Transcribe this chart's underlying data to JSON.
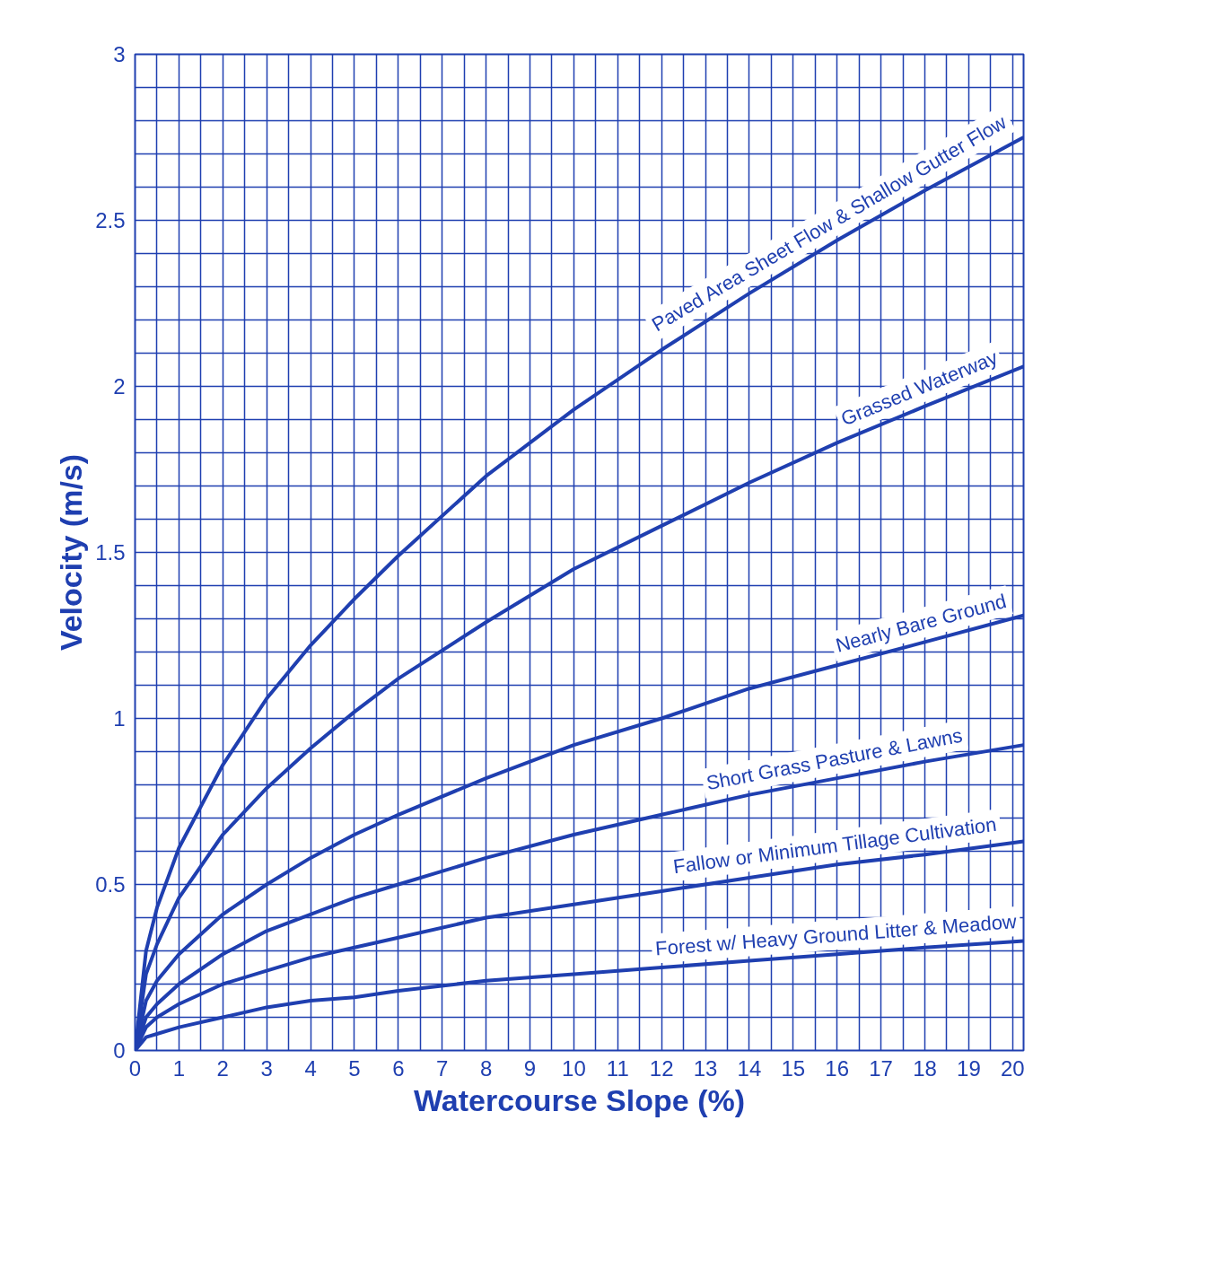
{
  "chart_data": {
    "type": "line",
    "xlabel": "Watercourse Slope (%)",
    "ylabel": "Velocity (m/s)",
    "x": [
      0,
      0.25,
      0.5,
      1,
      2,
      3,
      4,
      5,
      6,
      8,
      10,
      12,
      14,
      16,
      18,
      20.25
    ],
    "series": [
      {
        "name": "Paved Area Sheet Flow & Shallow Gutter Flow",
        "color": "#1f3fb0",
        "values": [
          0,
          0.3,
          0.43,
          0.61,
          0.86,
          1.06,
          1.22,
          1.36,
          1.49,
          1.73,
          1.93,
          2.11,
          2.28,
          2.44,
          2.59,
          2.75
        ]
      },
      {
        "name": "Grassed Waterway",
        "color": "#1f3fb0",
        "values": [
          0,
          0.23,
          0.32,
          0.46,
          0.65,
          0.79,
          0.91,
          1.02,
          1.12,
          1.29,
          1.45,
          1.58,
          1.71,
          1.83,
          1.94,
          2.06
        ]
      },
      {
        "name": "Nearly Bare Ground",
        "color": "#1f3fb0",
        "values": [
          0,
          0.15,
          0.21,
          0.29,
          0.41,
          0.5,
          0.58,
          0.65,
          0.71,
          0.82,
          0.92,
          1.0,
          1.09,
          1.16,
          1.23,
          1.31
        ]
      },
      {
        "name": "Short Grass Pasture & Lawns",
        "color": "#1f3fb0",
        "values": [
          0,
          0.1,
          0.14,
          0.2,
          0.29,
          0.36,
          0.41,
          0.46,
          0.5,
          0.58,
          0.65,
          0.71,
          0.77,
          0.82,
          0.87,
          0.92
        ]
      },
      {
        "name": "Fallow or Minimum Tillage Cultivation",
        "color": "#1f3fb0",
        "values": [
          0,
          0.07,
          0.1,
          0.14,
          0.2,
          0.24,
          0.28,
          0.31,
          0.34,
          0.4,
          0.44,
          0.48,
          0.52,
          0.56,
          0.59,
          0.63
        ]
      },
      {
        "name": "Forest w/ Heavy Ground Litter & Meadow",
        "color": "#1f3fb0",
        "values": [
          0,
          0.04,
          0.05,
          0.07,
          0.1,
          0.13,
          0.15,
          0.16,
          0.18,
          0.21,
          0.23,
          0.25,
          0.27,
          0.29,
          0.31,
          0.33
        ]
      }
    ],
    "xlim": [
      0,
      20.25
    ],
    "ylim": [
      0,
      3
    ],
    "xticks": [
      0,
      {
        "value": 0.5,
        "label": null
      },
      1,
      {
        "value": 1.5,
        "label": null
      },
      2,
      {
        "value": 2.5,
        "label": null
      },
      3,
      {
        "value": 3.5,
        "label": null
      },
      4,
      {
        "value": 4.5,
        "label": null
      },
      5,
      {
        "value": 5.5,
        "label": null
      },
      6,
      {
        "value": 6.5,
        "label": null
      },
      7,
      {
        "value": 7.5,
        "label": null
      },
      8,
      {
        "value": 8.5,
        "label": null
      },
      9,
      {
        "value": 9.5,
        "label": null
      },
      10,
      {
        "value": 10.5,
        "label": null
      },
      11,
      {
        "value": 11.5,
        "label": null
      },
      12,
      {
        "value": 12.5,
        "label": null
      },
      13,
      {
        "value": 13.5,
        "label": null
      },
      14,
      {
        "value": 14.5,
        "label": null
      },
      15,
      {
        "value": 15.5,
        "label": null
      },
      16,
      {
        "value": 16.5,
        "label": null
      },
      17,
      {
        "value": 17.5,
        "label": null
      },
      18,
      {
        "value": 18.5,
        "label": null
      },
      19,
      {
        "value": 19.5,
        "label": null
      },
      20
    ],
    "yticks": [
      0,
      {
        "value": 0.1,
        "label": null
      },
      {
        "value": 0.2,
        "label": null
      },
      {
        "value": 0.3,
        "label": null
      },
      {
        "value": 0.4,
        "label": null
      },
      0.5,
      {
        "value": 0.6,
        "label": null
      },
      {
        "value": 0.7,
        "label": null
      },
      {
        "value": 0.8,
        "label": null
      },
      {
        "value": 0.9,
        "label": null
      },
      1,
      {
        "value": 1.1,
        "label": null
      },
      {
        "value": 1.2,
        "label": null
      },
      {
        "value": 1.3,
        "label": null
      },
      {
        "value": 1.4,
        "label": null
      },
      1.5,
      {
        "value": 1.6,
        "label": null
      },
      {
        "value": 1.7,
        "label": null
      },
      {
        "value": 1.8,
        "label": null
      },
      {
        "value": 1.9,
        "label": null
      },
      2,
      {
        "value": 2.1,
        "label": null
      },
      {
        "value": 2.2,
        "label": null
      },
      {
        "value": 2.3,
        "label": null
      },
      {
        "value": 2.4,
        "label": null
      },
      2.5,
      {
        "value": 2.6,
        "label": null
      },
      {
        "value": 2.7,
        "label": null
      },
      {
        "value": 2.8,
        "label": null
      },
      {
        "value": 2.9,
        "label": null
      },
      3
    ],
    "grid": true,
    "marker": "none",
    "line_style": "solid"
  }
}
